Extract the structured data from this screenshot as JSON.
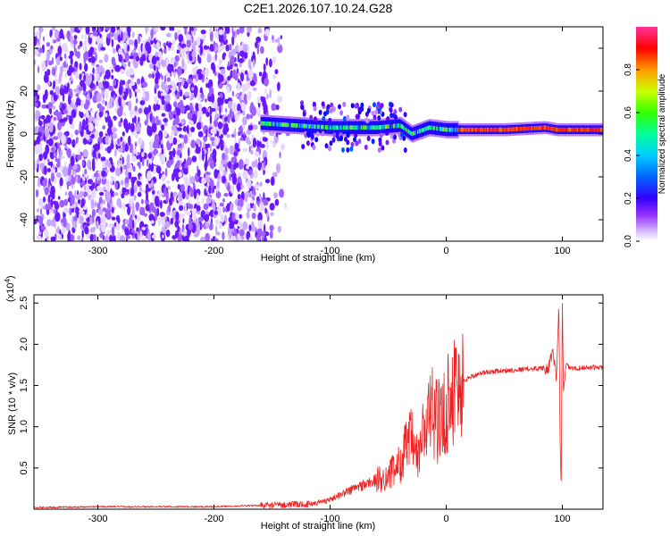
{
  "figure_title": "C2E1.2026.107.10.24.G28",
  "chart_data": [
    {
      "type": "heatmap",
      "title": "C2E1.2026.107.10.24.G28",
      "xlabel": "Height of straight line (km)",
      "ylabel": "Frequency (Hz)",
      "xlim": [
        -355,
        135
      ],
      "ylim": [
        -50,
        50
      ],
      "x_ticks": [
        -300,
        -200,
        -100,
        0,
        100
      ],
      "x_tick_labels": [
        "-300",
        "-200",
        "-100",
        "0",
        "100"
      ],
      "y_ticks": [
        40,
        20,
        0,
        -20,
        -40
      ],
      "y_tick_labels": [
        "40",
        "20",
        "0",
        "-20",
        "-40"
      ],
      "colorbar": {
        "label": "Normalized spectral amplitude",
        "range": [
          0,
          1
        ],
        "ticks": [
          0.0,
          0.2,
          0.4,
          0.6,
          0.8
        ],
        "tick_labels": [
          "0.0",
          "0.2",
          "0.4",
          "0.6",
          "0.8"
        ],
        "colormap": [
          "#ffffff",
          "#cc99ff",
          "#6600ff",
          "#0000ff",
          "#00ccff",
          "#00ff66",
          "#99ff00",
          "#ffff00",
          "#ff9900",
          "#ff0000",
          "#ff3399"
        ]
      },
      "regions": [
        {
          "name": "noise",
          "x_range": [
            -355,
            -135
          ],
          "freq_range": [
            -50,
            50
          ],
          "amplitude": 0.05
        },
        {
          "name": "signal",
          "x_range": [
            -160,
            135
          ],
          "center_freq_hz": 2,
          "amplitude_min": 0.3,
          "amplitude_max": 0.95
        }
      ],
      "signal_track": [
        {
          "x": -160,
          "f": 5
        },
        {
          "x": -130,
          "f": 4
        },
        {
          "x": -100,
          "f": 3
        },
        {
          "x": -60,
          "f": 3
        },
        {
          "x": -40,
          "f": 4
        },
        {
          "x": -30,
          "f": 0
        },
        {
          "x": -15,
          "f": 3
        },
        {
          "x": 0,
          "f": 2
        },
        {
          "x": 50,
          "f": 2
        },
        {
          "x": 85,
          "f": 3
        },
        {
          "x": 95,
          "f": 2
        },
        {
          "x": 135,
          "f": 2
        }
      ]
    },
    {
      "type": "line",
      "xlabel": "Height of straight line (km)",
      "ylabel": "SNR (10 * v/v)",
      "scale_label": "(x10",
      "scale_exponent": "4",
      "scale_suffix": ")",
      "xlim": [
        -355,
        135
      ],
      "ylim": [
        0,
        2.6
      ],
      "x_ticks": [
        -300,
        -200,
        -100,
        0,
        100
      ],
      "x_tick_labels": [
        "-300",
        "-200",
        "-100",
        "0",
        "100"
      ],
      "y_ticks": [
        0.5,
        1.0,
        1.5,
        2.0,
        2.5
      ],
      "y_tick_labels": [
        "0.5",
        "1.0",
        "1.5",
        "2.0",
        "2.5"
      ],
      "color": "#ee2222",
      "series": [
        {
          "name": "SNR",
          "x": [
            -355,
            -300,
            -250,
            -200,
            -150,
            -120,
            -110,
            -100,
            -90,
            -80,
            -70,
            -60,
            -50,
            -40,
            -35,
            -30,
            -25,
            -20,
            -15,
            -10,
            -5,
            0,
            5,
            10,
            15,
            20,
            30,
            40,
            50,
            60,
            70,
            80,
            88,
            92,
            95,
            97,
            98,
            99,
            100,
            101,
            103,
            106,
            110,
            120,
            135
          ],
          "y": [
            0.02,
            0.03,
            0.03,
            0.03,
            0.05,
            0.06,
            0.08,
            0.12,
            0.18,
            0.25,
            0.3,
            0.35,
            0.4,
            0.55,
            0.75,
            0.85,
            0.6,
            0.9,
            1.1,
            1.2,
            1.0,
            1.25,
            1.5,
            1.45,
            1.55,
            1.6,
            1.65,
            1.67,
            1.68,
            1.69,
            1.7,
            1.71,
            1.72,
            1.9,
            1.6,
            2.5,
            0.9,
            0.2,
            2.55,
            1.4,
            1.75,
            1.72,
            1.7,
            1.72,
            1.72
          ]
        }
      ],
      "noise_amplitude": [
        {
          "x_from": -355,
          "x_to": -160,
          "amp": 0.01
        },
        {
          "x_from": -160,
          "x_to": -100,
          "amp": 0.04
        },
        {
          "x_from": -100,
          "x_to": -60,
          "amp": 0.25
        },
        {
          "x_from": -60,
          "x_to": -30,
          "amp": 0.45
        },
        {
          "x_from": -30,
          "x_to": 15,
          "amp": 0.5
        },
        {
          "x_from": 15,
          "x_to": 85,
          "amp": 0.03
        },
        {
          "x_from": 85,
          "x_to": 95,
          "amp": 0.08
        },
        {
          "x_from": 95,
          "x_to": 135,
          "amp": 0.03
        }
      ]
    }
  ]
}
